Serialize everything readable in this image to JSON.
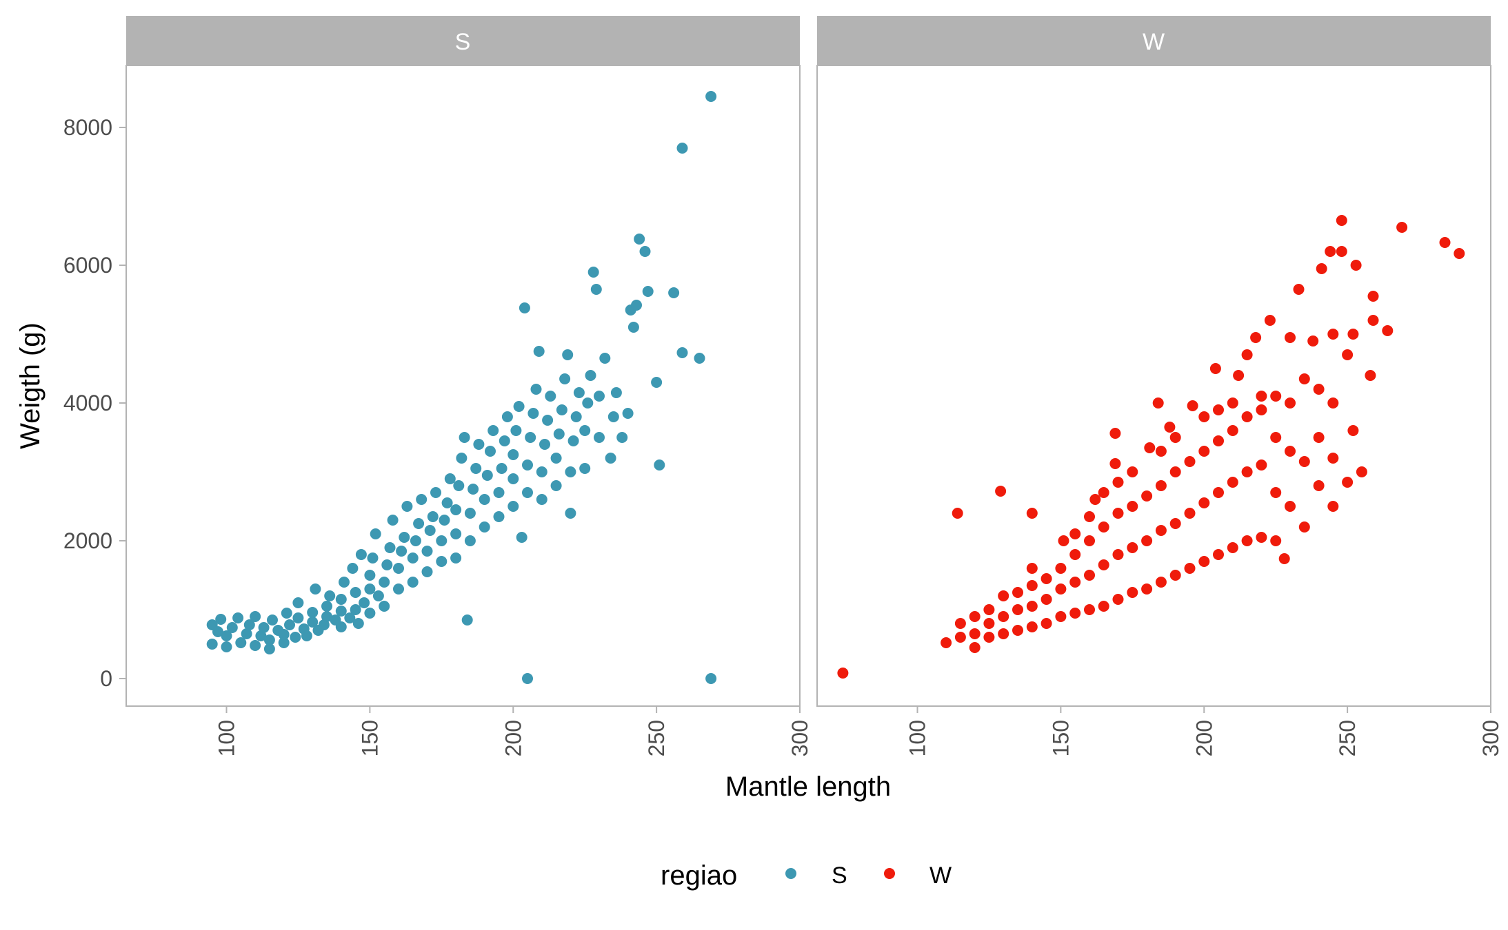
{
  "chart_data": {
    "type": "scatter",
    "xlabel": "Mantle length",
    "ylabel": "Weigth (g)",
    "xlim": [
      65,
      300
    ],
    "ylim": [
      -400,
      8900
    ],
    "x_ticks": [
      100,
      150,
      200,
      250,
      300
    ],
    "y_ticks": [
      0,
      2000,
      4000,
      6000,
      8000
    ],
    "legend": {
      "title": "regiao",
      "position": "bottom",
      "items": [
        {
          "label": "S",
          "color": "#3d98b2"
        },
        {
          "label": "W",
          "color": "#ef1b0b"
        }
      ]
    },
    "panels": [
      {
        "strip": "S",
        "color": "#3d98b2",
        "series_name": "S",
        "points": [
          [
            95,
            780
          ],
          [
            95,
            500
          ],
          [
            97,
            680
          ],
          [
            98,
            860
          ],
          [
            100,
            460
          ],
          [
            100,
            620
          ],
          [
            102,
            740
          ],
          [
            104,
            880
          ],
          [
            105,
            520
          ],
          [
            107,
            650
          ],
          [
            108,
            780
          ],
          [
            110,
            480
          ],
          [
            110,
            900
          ],
          [
            112,
            620
          ],
          [
            113,
            740
          ],
          [
            115,
            430
          ],
          [
            115,
            560
          ],
          [
            116,
            850
          ],
          [
            118,
            700
          ],
          [
            120,
            520
          ],
          [
            120,
            640
          ],
          [
            121,
            950
          ],
          [
            122,
            780
          ],
          [
            124,
            600
          ],
          [
            125,
            880
          ],
          [
            125,
            1100
          ],
          [
            127,
            720
          ],
          [
            128,
            620
          ],
          [
            130,
            820
          ],
          [
            130,
            960
          ],
          [
            131,
            1300
          ],
          [
            132,
            700
          ],
          [
            134,
            780
          ],
          [
            135,
            900
          ],
          [
            135,
            1050
          ],
          [
            136,
            1200
          ],
          [
            138,
            850
          ],
          [
            140,
            750
          ],
          [
            140,
            980
          ],
          [
            140,
            1150
          ],
          [
            141,
            1400
          ],
          [
            143,
            880
          ],
          [
            144,
            1600
          ],
          [
            145,
            1000
          ],
          [
            145,
            1250
          ],
          [
            146,
            800
          ],
          [
            147,
            1800
          ],
          [
            148,
            1100
          ],
          [
            150,
            950
          ],
          [
            150,
            1300
          ],
          [
            150,
            1500
          ],
          [
            151,
            1750
          ],
          [
            152,
            2100
          ],
          [
            153,
            1200
          ],
          [
            155,
            1050
          ],
          [
            155,
            1400
          ],
          [
            156,
            1650
          ],
          [
            157,
            1900
          ],
          [
            158,
            2300
          ],
          [
            160,
            1300
          ],
          [
            160,
            1600
          ],
          [
            161,
            1850
          ],
          [
            162,
            2050
          ],
          [
            163,
            2500
          ],
          [
            165,
            1400
          ],
          [
            165,
            1750
          ],
          [
            166,
            2000
          ],
          [
            167,
            2250
          ],
          [
            168,
            2600
          ],
          [
            170,
            1550
          ],
          [
            170,
            1850
          ],
          [
            171,
            2150
          ],
          [
            172,
            2350
          ],
          [
            173,
            2700
          ],
          [
            175,
            1700
          ],
          [
            175,
            2000
          ],
          [
            176,
            2300
          ],
          [
            177,
            2550
          ],
          [
            178,
            2900
          ],
          [
            180,
            1750
          ],
          [
            180,
            2100
          ],
          [
            180,
            2450
          ],
          [
            181,
            2800
          ],
          [
            182,
            3200
          ],
          [
            183,
            3500
          ],
          [
            184,
            850
          ],
          [
            185,
            2000
          ],
          [
            185,
            2400
          ],
          [
            186,
            2750
          ],
          [
            187,
            3050
          ],
          [
            188,
            3400
          ],
          [
            190,
            2200
          ],
          [
            190,
            2600
          ],
          [
            191,
            2950
          ],
          [
            192,
            3300
          ],
          [
            193,
            3600
          ],
          [
            195,
            2350
          ],
          [
            195,
            2700
          ],
          [
            196,
            3050
          ],
          [
            197,
            3450
          ],
          [
            198,
            3800
          ],
          [
            200,
            2500
          ],
          [
            200,
            2900
          ],
          [
            200,
            3250
          ],
          [
            201,
            3600
          ],
          [
            202,
            3950
          ],
          [
            203,
            2050
          ],
          [
            204,
            5380
          ],
          [
            205,
            2700
          ],
          [
            205,
            3100
          ],
          [
            206,
            3500
          ],
          [
            207,
            3850
          ],
          [
            208,
            4200
          ],
          [
            209,
            4750
          ],
          [
            210,
            2600
          ],
          [
            210,
            3000
          ],
          [
            211,
            3400
          ],
          [
            212,
            3750
          ],
          [
            213,
            4100
          ],
          [
            215,
            2800
          ],
          [
            215,
            3200
          ],
          [
            216,
            3550
          ],
          [
            217,
            3900
          ],
          [
            218,
            4350
          ],
          [
            219,
            4700
          ],
          [
            220,
            2400
          ],
          [
            220,
            3000
          ],
          [
            221,
            3450
          ],
          [
            222,
            3800
          ],
          [
            223,
            4150
          ],
          [
            225,
            3050
          ],
          [
            225,
            3600
          ],
          [
            226,
            4000
          ],
          [
            227,
            4400
          ],
          [
            228,
            5900
          ],
          [
            229,
            5650
          ],
          [
            230,
            3500
          ],
          [
            230,
            4100
          ],
          [
            232,
            4650
          ],
          [
            234,
            3200
          ],
          [
            235,
            3800
          ],
          [
            236,
            4150
          ],
          [
            238,
            3500
          ],
          [
            240,
            3850
          ],
          [
            241,
            5350
          ],
          [
            242,
            5100
          ],
          [
            243,
            5420
          ],
          [
            244,
            6380
          ],
          [
            246,
            6200
          ],
          [
            247,
            5620
          ],
          [
            250,
            4300
          ],
          [
            251,
            3100
          ],
          [
            256,
            5600
          ],
          [
            259,
            7700
          ],
          [
            259,
            4730
          ],
          [
            265,
            4650
          ],
          [
            269,
            8450
          ],
          [
            205,
            0
          ],
          [
            269,
            0
          ]
        ]
      },
      {
        "strip": "W",
        "color": "#ef1b0b",
        "series_name": "W",
        "points": [
          [
            74,
            80
          ],
          [
            110,
            520
          ],
          [
            114,
            2400
          ],
          [
            115,
            600
          ],
          [
            115,
            800
          ],
          [
            120,
            450
          ],
          [
            120,
            650
          ],
          [
            120,
            900
          ],
          [
            125,
            600
          ],
          [
            125,
            800
          ],
          [
            125,
            1000
          ],
          [
            129,
            2720
          ],
          [
            130,
            650
          ],
          [
            130,
            900
          ],
          [
            130,
            1200
          ],
          [
            135,
            700
          ],
          [
            135,
            1000
          ],
          [
            135,
            1250
          ],
          [
            140,
            2400
          ],
          [
            140,
            750
          ],
          [
            140,
            1050
          ],
          [
            140,
            1350
          ],
          [
            140,
            1600
          ],
          [
            145,
            800
          ],
          [
            145,
            1150
          ],
          [
            145,
            1450
          ],
          [
            150,
            900
          ],
          [
            150,
            1300
          ],
          [
            150,
            1600
          ],
          [
            151,
            2000
          ],
          [
            155,
            950
          ],
          [
            155,
            1400
          ],
          [
            155,
            1800
          ],
          [
            155,
            2100
          ],
          [
            160,
            1000
          ],
          [
            160,
            1500
          ],
          [
            160,
            2000
          ],
          [
            160,
            2350
          ],
          [
            162,
            2600
          ],
          [
            165,
            1050
          ],
          [
            165,
            1650
          ],
          [
            165,
            2200
          ],
          [
            165,
            2700
          ],
          [
            169,
            3560
          ],
          [
            169,
            3120
          ],
          [
            170,
            1150
          ],
          [
            170,
            1800
          ],
          [
            170,
            2400
          ],
          [
            170,
            2850
          ],
          [
            175,
            1250
          ],
          [
            175,
            1900
          ],
          [
            175,
            2500
          ],
          [
            175,
            3000
          ],
          [
            180,
            1300
          ],
          [
            180,
            2000
          ],
          [
            180,
            2650
          ],
          [
            181,
            3350
          ],
          [
            184,
            4000
          ],
          [
            185,
            1400
          ],
          [
            185,
            2150
          ],
          [
            185,
            2800
          ],
          [
            185,
            3300
          ],
          [
            188,
            3650
          ],
          [
            190,
            1500
          ],
          [
            190,
            2250
          ],
          [
            190,
            3000
          ],
          [
            190,
            3500
          ],
          [
            195,
            1600
          ],
          [
            195,
            2400
          ],
          [
            195,
            3150
          ],
          [
            196,
            3960
          ],
          [
            200,
            1700
          ],
          [
            200,
            2550
          ],
          [
            200,
            3300
          ],
          [
            200,
            3800
          ],
          [
            204,
            4500
          ],
          [
            205,
            1800
          ],
          [
            205,
            2700
          ],
          [
            205,
            3450
          ],
          [
            205,
            3900
          ],
          [
            210,
            1900
          ],
          [
            210,
            2850
          ],
          [
            210,
            3600
          ],
          [
            210,
            4000
          ],
          [
            212,
            4400
          ],
          [
            215,
            2000
          ],
          [
            215,
            3000
          ],
          [
            215,
            3800
          ],
          [
            215,
            4700
          ],
          [
            218,
            4950
          ],
          [
            220,
            2050
          ],
          [
            220,
            3100
          ],
          [
            220,
            3900
          ],
          [
            220,
            4100
          ],
          [
            223,
            5200
          ],
          [
            225,
            2000
          ],
          [
            225,
            2700
          ],
          [
            225,
            3500
          ],
          [
            225,
            4100
          ],
          [
            228,
            1740
          ],
          [
            230,
            2500
          ],
          [
            230,
            3300
          ],
          [
            230,
            4000
          ],
          [
            230,
            4950
          ],
          [
            233,
            5650
          ],
          [
            235,
            2200
          ],
          [
            235,
            3150
          ],
          [
            235,
            4350
          ],
          [
            238,
            4900
          ],
          [
            240,
            2800
          ],
          [
            240,
            3500
          ],
          [
            240,
            4200
          ],
          [
            241,
            5950
          ],
          [
            244,
            6200
          ],
          [
            245,
            2500
          ],
          [
            245,
            3200
          ],
          [
            245,
            4000
          ],
          [
            245,
            5000
          ],
          [
            248,
            6650
          ],
          [
            248,
            6200
          ],
          [
            250,
            2850
          ],
          [
            250,
            4700
          ],
          [
            252,
            5000
          ],
          [
            252,
            3600
          ],
          [
            253,
            6000
          ],
          [
            255,
            3000
          ],
          [
            258,
            4400
          ],
          [
            259,
            5550
          ],
          [
            259,
            5200
          ],
          [
            264,
            5050
          ],
          [
            269,
            6550
          ],
          [
            284,
            6330
          ],
          [
            289,
            6170
          ]
        ]
      }
    ]
  }
}
